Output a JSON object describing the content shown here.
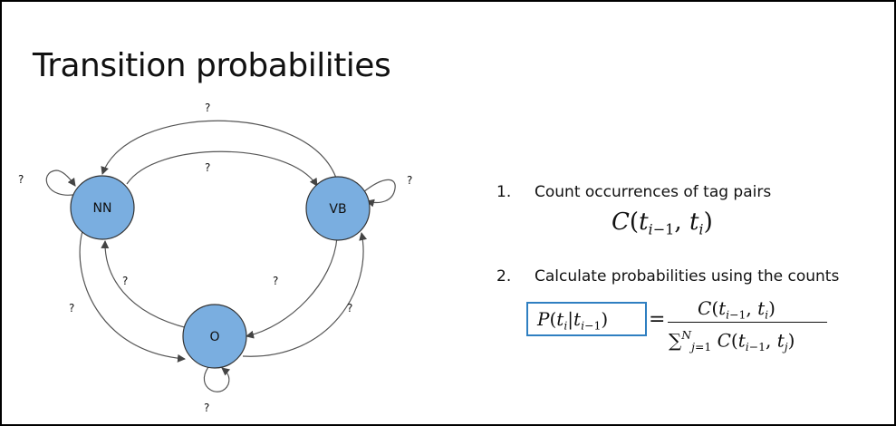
{
  "slide": {
    "title": "Transition probabilities"
  },
  "diagram": {
    "nodes": [
      {
        "id": "NN",
        "label": "NN"
      },
      {
        "id": "VB",
        "label": "VB"
      },
      {
        "id": "O",
        "label": "O"
      }
    ],
    "edge_label": "?"
  },
  "steps": [
    {
      "number": "1.",
      "text": "Count occurrences of tag pairs"
    },
    {
      "number": "2.",
      "text": "Calculate probabilities using the counts"
    }
  ],
  "colors": {
    "node_fill": "#7aaee0",
    "highlight_box": "#2f7fc1"
  }
}
